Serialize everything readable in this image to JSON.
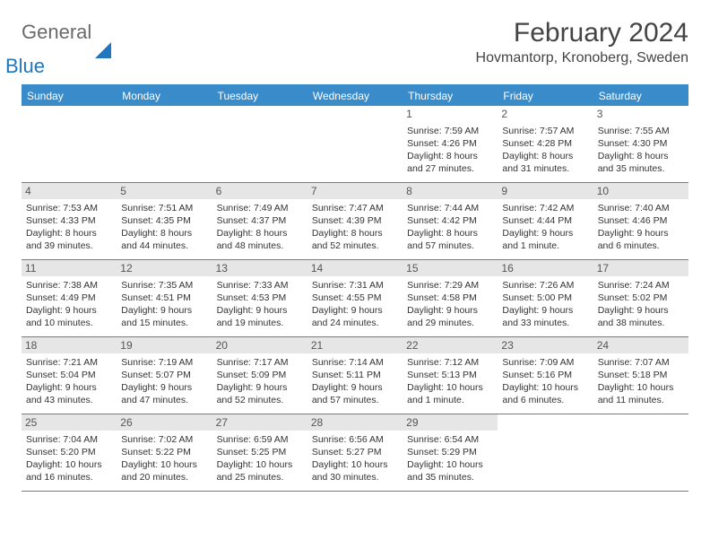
{
  "logo": {
    "text1": "General",
    "text2": "Blue"
  },
  "title": "February 2024",
  "location": "Hovmantorp, Kronoberg, Sweden",
  "header_bg": "#3a8bc9",
  "days_of_week": [
    "Sunday",
    "Monday",
    "Tuesday",
    "Wednesday",
    "Thursday",
    "Friday",
    "Saturday"
  ],
  "weeks": [
    [
      null,
      null,
      null,
      null,
      {
        "d": "1",
        "sr": "7:59 AM",
        "ss": "4:26 PM",
        "dl": "8 hours and 27 minutes."
      },
      {
        "d": "2",
        "sr": "7:57 AM",
        "ss": "4:28 PM",
        "dl": "8 hours and 31 minutes."
      },
      {
        "d": "3",
        "sr": "7:55 AM",
        "ss": "4:30 PM",
        "dl": "8 hours and 35 minutes."
      }
    ],
    [
      {
        "d": "4",
        "sr": "7:53 AM",
        "ss": "4:33 PM",
        "dl": "8 hours and 39 minutes."
      },
      {
        "d": "5",
        "sr": "7:51 AM",
        "ss": "4:35 PM",
        "dl": "8 hours and 44 minutes."
      },
      {
        "d": "6",
        "sr": "7:49 AM",
        "ss": "4:37 PM",
        "dl": "8 hours and 48 minutes."
      },
      {
        "d": "7",
        "sr": "7:47 AM",
        "ss": "4:39 PM",
        "dl": "8 hours and 52 minutes."
      },
      {
        "d": "8",
        "sr": "7:44 AM",
        "ss": "4:42 PM",
        "dl": "8 hours and 57 minutes."
      },
      {
        "d": "9",
        "sr": "7:42 AM",
        "ss": "4:44 PM",
        "dl": "9 hours and 1 minute."
      },
      {
        "d": "10",
        "sr": "7:40 AM",
        "ss": "4:46 PM",
        "dl": "9 hours and 6 minutes."
      }
    ],
    [
      {
        "d": "11",
        "sr": "7:38 AM",
        "ss": "4:49 PM",
        "dl": "9 hours and 10 minutes."
      },
      {
        "d": "12",
        "sr": "7:35 AM",
        "ss": "4:51 PM",
        "dl": "9 hours and 15 minutes."
      },
      {
        "d": "13",
        "sr": "7:33 AM",
        "ss": "4:53 PM",
        "dl": "9 hours and 19 minutes."
      },
      {
        "d": "14",
        "sr": "7:31 AM",
        "ss": "4:55 PM",
        "dl": "9 hours and 24 minutes."
      },
      {
        "d": "15",
        "sr": "7:29 AM",
        "ss": "4:58 PM",
        "dl": "9 hours and 29 minutes."
      },
      {
        "d": "16",
        "sr": "7:26 AM",
        "ss": "5:00 PM",
        "dl": "9 hours and 33 minutes."
      },
      {
        "d": "17",
        "sr": "7:24 AM",
        "ss": "5:02 PM",
        "dl": "9 hours and 38 minutes."
      }
    ],
    [
      {
        "d": "18",
        "sr": "7:21 AM",
        "ss": "5:04 PM",
        "dl": "9 hours and 43 minutes."
      },
      {
        "d": "19",
        "sr": "7:19 AM",
        "ss": "5:07 PM",
        "dl": "9 hours and 47 minutes."
      },
      {
        "d": "20",
        "sr": "7:17 AM",
        "ss": "5:09 PM",
        "dl": "9 hours and 52 minutes."
      },
      {
        "d": "21",
        "sr": "7:14 AM",
        "ss": "5:11 PM",
        "dl": "9 hours and 57 minutes."
      },
      {
        "d": "22",
        "sr": "7:12 AM",
        "ss": "5:13 PM",
        "dl": "10 hours and 1 minute."
      },
      {
        "d": "23",
        "sr": "7:09 AM",
        "ss": "5:16 PM",
        "dl": "10 hours and 6 minutes."
      },
      {
        "d": "24",
        "sr": "7:07 AM",
        "ss": "5:18 PM",
        "dl": "10 hours and 11 minutes."
      }
    ],
    [
      {
        "d": "25",
        "sr": "7:04 AM",
        "ss": "5:20 PM",
        "dl": "10 hours and 16 minutes."
      },
      {
        "d": "26",
        "sr": "7:02 AM",
        "ss": "5:22 PM",
        "dl": "10 hours and 20 minutes."
      },
      {
        "d": "27",
        "sr": "6:59 AM",
        "ss": "5:25 PM",
        "dl": "10 hours and 25 minutes."
      },
      {
        "d": "28",
        "sr": "6:56 AM",
        "ss": "5:27 PM",
        "dl": "10 hours and 30 minutes."
      },
      {
        "d": "29",
        "sr": "6:54 AM",
        "ss": "5:29 PM",
        "dl": "10 hours and 35 minutes."
      },
      null,
      null
    ]
  ],
  "labels": {
    "sunrise": "Sunrise:",
    "sunset": "Sunset:",
    "daylight": "Daylight:"
  }
}
